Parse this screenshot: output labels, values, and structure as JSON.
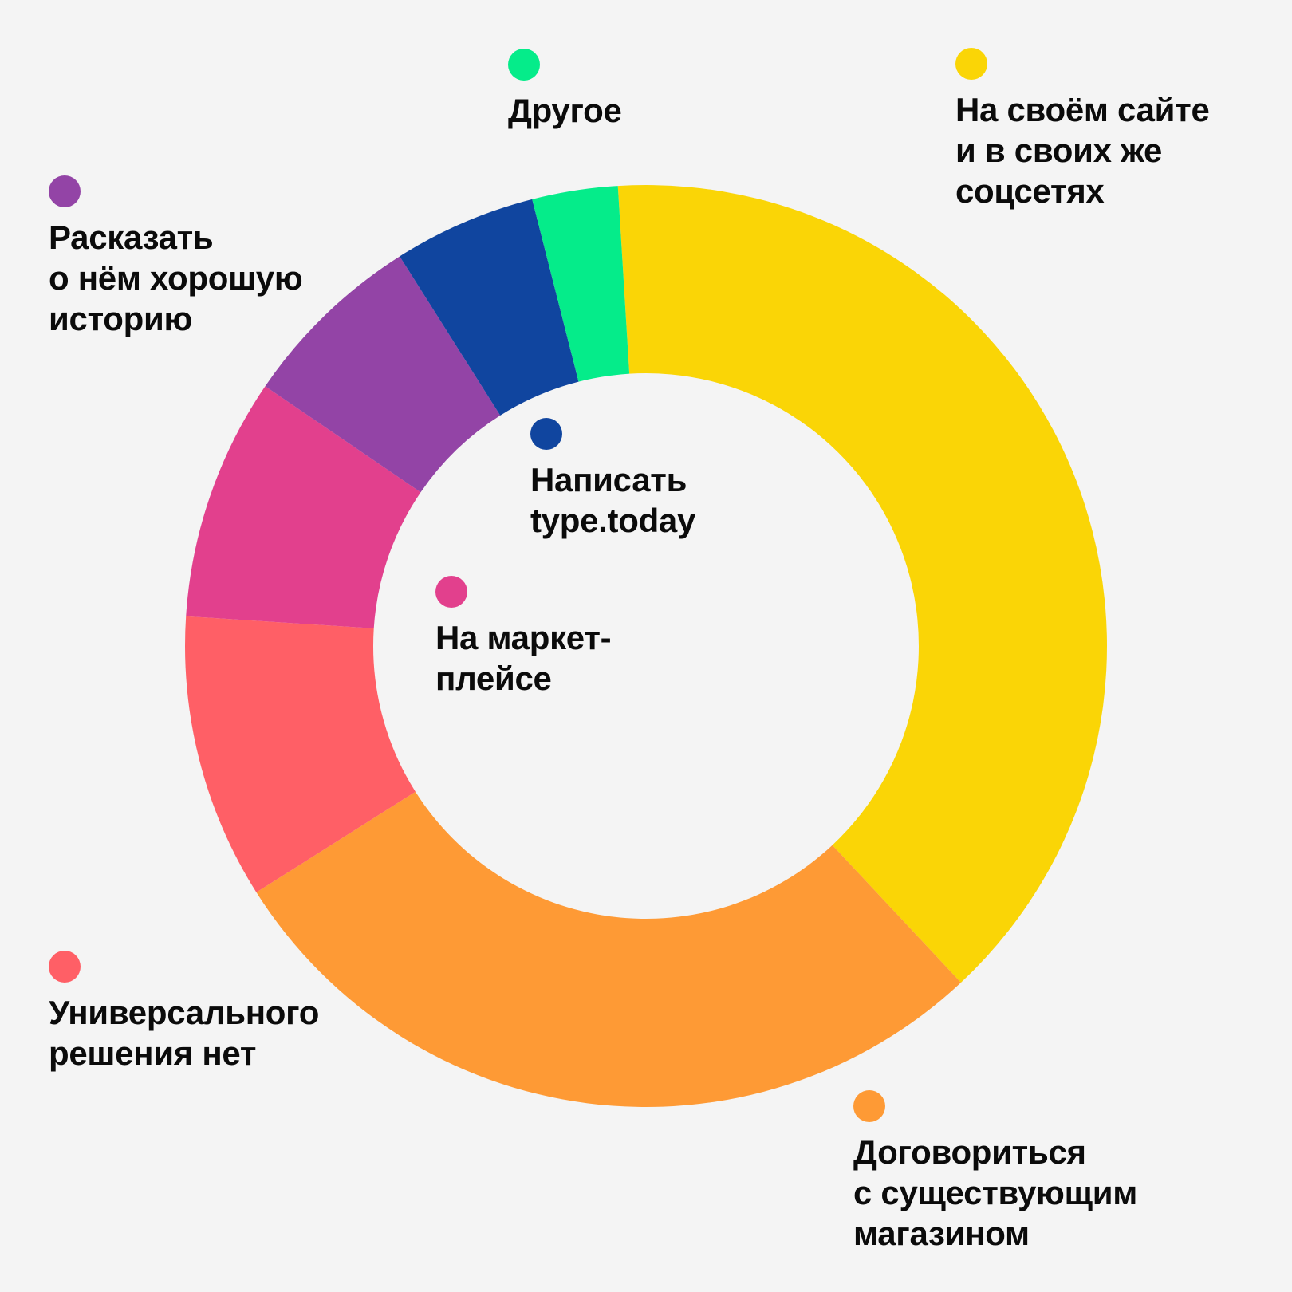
{
  "chart_data": {
    "type": "pie",
    "donut": true,
    "legend_placement": "around the chart",
    "slices": [
      {
        "label": "На своём сайте\nи в своих же\nсоцсетях",
        "value": 39.0,
        "color": "#FAD506"
      },
      {
        "label": "Договориться\nс существующим\nмагазином",
        "value": 28.0,
        "color": "#FE9A35"
      },
      {
        "label": "Универсального\nрешения нет",
        "value": 10.0,
        "color": "#FF5F66"
      },
      {
        "label": "На маркет-\nплейсе",
        "value": 8.5,
        "color": "#E2408D"
      },
      {
        "label": "Раcказать\nо нём хорошую\nисторию",
        "value": 6.5,
        "color": "#9344A6"
      },
      {
        "label": "Написать\ntype.today",
        "value": 5.0,
        "color": "#10459F"
      },
      {
        "label": "Другое",
        "value": 3.0,
        "color": "#05EC8A"
      }
    ]
  }
}
